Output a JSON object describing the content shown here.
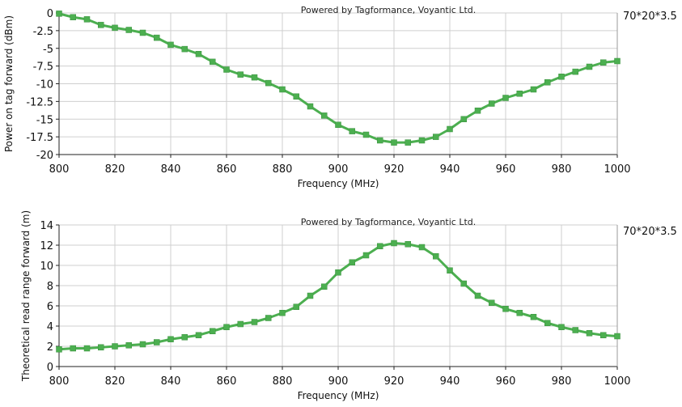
{
  "chart_data": [
    {
      "type": "line",
      "title": "Powered by Tagformance, Voyantic Ltd.",
      "xlabel": "Frequency (MHz)",
      "ylabel": "Power on tag forward (dBm)",
      "xlim": [
        800,
        1000
      ],
      "ylim": [
        -20,
        0
      ],
      "xticks": [
        800,
        820,
        840,
        860,
        880,
        900,
        920,
        940,
        960,
        980,
        1000
      ],
      "yticks": [
        0,
        -2.5,
        -5,
        -7.5,
        -10,
        -12.5,
        -15,
        -17.5,
        -20
      ],
      "ytick_labels": [
        "0",
        "-2.5",
        "-5",
        "-7.5",
        "-10",
        "-12.5",
        "-15",
        "-17.5",
        "-20"
      ],
      "grid": true,
      "series": [
        {
          "name": "70*20*3.5",
          "color": "#4caf50",
          "x": [
            800,
            805,
            810,
            815,
            820,
            825,
            830,
            835,
            840,
            845,
            850,
            855,
            860,
            865,
            870,
            875,
            880,
            885,
            890,
            895,
            900,
            905,
            910,
            915,
            920,
            925,
            930,
            935,
            940,
            945,
            950,
            955,
            960,
            965,
            970,
            975,
            980,
            985,
            990,
            995,
            1000
          ],
          "y": [
            -0.1,
            -0.6,
            -0.9,
            -1.7,
            -2.1,
            -2.4,
            -2.8,
            -3.5,
            -4.5,
            -5.1,
            -5.8,
            -6.9,
            -8.0,
            -8.7,
            -9.1,
            -9.9,
            -10.8,
            -11.8,
            -13.2,
            -14.5,
            -15.8,
            -16.7,
            -17.2,
            -18.0,
            -18.3,
            -18.3,
            -18.0,
            -17.5,
            -16.4,
            -15.0,
            -13.8,
            -12.8,
            -12.0,
            -11.4,
            -10.8,
            -9.8,
            -9.0,
            -8.3,
            -7.6,
            -7.0,
            -6.8
          ]
        }
      ],
      "credit": "Powered by Tagformance, Voyantic Ltd."
    },
    {
      "type": "line",
      "title": "Powered by Tagformance, Voyantic Ltd.",
      "xlabel": "Frequency (MHz)",
      "ylabel": "Theoretical read range forward (m)",
      "xlim": [
        800,
        1000
      ],
      "ylim": [
        0,
        14
      ],
      "xticks": [
        800,
        820,
        840,
        860,
        880,
        900,
        920,
        940,
        960,
        980,
        1000
      ],
      "yticks": [
        0,
        2,
        4,
        6,
        8,
        10,
        12,
        14
      ],
      "ytick_labels": [
        "0",
        "2",
        "4",
        "6",
        "8",
        "10",
        "12",
        "14"
      ],
      "grid": true,
      "series": [
        {
          "name": "70*20*3.5",
          "color": "#4caf50",
          "x": [
            800,
            805,
            810,
            815,
            820,
            825,
            830,
            835,
            840,
            845,
            850,
            855,
            860,
            865,
            870,
            875,
            880,
            885,
            890,
            895,
            900,
            905,
            910,
            915,
            920,
            925,
            930,
            935,
            940,
            945,
            950,
            955,
            960,
            965,
            970,
            975,
            980,
            985,
            990,
            995,
            1000
          ],
          "y": [
            1.7,
            1.8,
            1.8,
            1.9,
            2.0,
            2.1,
            2.2,
            2.4,
            2.7,
            2.9,
            3.1,
            3.5,
            3.9,
            4.2,
            4.4,
            4.8,
            5.3,
            5.9,
            7.0,
            7.9,
            9.3,
            10.3,
            11.0,
            11.9,
            12.2,
            12.1,
            11.8,
            10.9,
            9.5,
            8.2,
            7.0,
            6.3,
            5.7,
            5.3,
            4.9,
            4.3,
            3.9,
            3.6,
            3.3,
            3.1,
            3.0
          ]
        }
      ],
      "credit": "Powered by Tagformance, Voyantic Ltd."
    }
  ]
}
